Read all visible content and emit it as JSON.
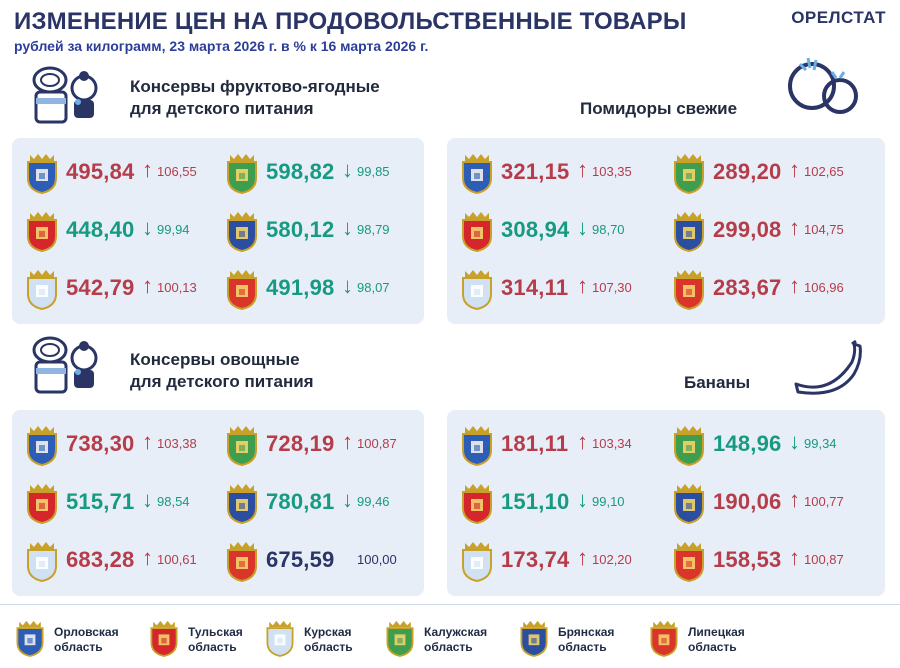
{
  "header": {
    "title": "ИЗМЕНЕНИЕ ЦЕН НА ПРОДОВОЛЬСТВЕННЫЕ ТОВАРЫ",
    "subtitle": "рублей за килограмм, 23 марта 2026 г. в % к 16 марта 2026 г.",
    "brand": "ОРЕЛСТАТ"
  },
  "colors": {
    "up": "#b63c49",
    "down": "#169a82",
    "same": "#2a3566",
    "panel": "#e7eef8"
  },
  "sections": [
    {
      "title_line1": "Консервы фруктово-ягодные",
      "title_line2": "для детского питания",
      "icon": "baby-food-jar-icon",
      "cells": [
        {
          "region": "orel",
          "price": "495,84",
          "trend": "up",
          "arrow": "↑",
          "index": "106,55"
        },
        {
          "region": "kaluga",
          "price": "598,82",
          "trend": "down",
          "arrow": "↓",
          "index": "99,85"
        },
        {
          "region": "tula",
          "price": "448,40",
          "trend": "down",
          "arrow": "↓",
          "index": "99,94"
        },
        {
          "region": "bryansk",
          "price": "580,12",
          "trend": "down",
          "arrow": "↓",
          "index": "98,79"
        },
        {
          "region": "kursk",
          "price": "542,79",
          "trend": "up",
          "arrow": "↑",
          "index": "100,13"
        },
        {
          "region": "lipetsk",
          "price": "491,98",
          "trend": "down",
          "arrow": "↓",
          "index": "98,07"
        }
      ]
    },
    {
      "title_line1": "Помидоры свежие",
      "title_line2": "",
      "icon": "tomato-icon",
      "cells": [
        {
          "region": "orel",
          "price": "321,15",
          "trend": "up",
          "arrow": "↑",
          "index": "103,35"
        },
        {
          "region": "kaluga",
          "price": "289,20",
          "trend": "up",
          "arrow": "↑",
          "index": "102,65"
        },
        {
          "region": "tula",
          "price": "308,94",
          "trend": "down",
          "arrow": "↓",
          "index": "98,70"
        },
        {
          "region": "bryansk",
          "price": "299,08",
          "trend": "up",
          "arrow": "↑",
          "index": "104,75"
        },
        {
          "region": "kursk",
          "price": "314,11",
          "trend": "up",
          "arrow": "↑",
          "index": "107,30"
        },
        {
          "region": "lipetsk",
          "price": "283,67",
          "trend": "up",
          "arrow": "↑",
          "index": "106,96"
        }
      ]
    },
    {
      "title_line1": "Консервы овощные",
      "title_line2": "для детского питания",
      "icon": "baby-food-jar-icon",
      "cells": [
        {
          "region": "orel",
          "price": "738,30",
          "trend": "up",
          "arrow": "↑",
          "index": "103,38"
        },
        {
          "region": "kaluga",
          "price": "728,19",
          "trend": "up",
          "arrow": "↑",
          "index": "100,87"
        },
        {
          "region": "tula",
          "price": "515,71",
          "trend": "down",
          "arrow": "↓",
          "index": "98,54"
        },
        {
          "region": "bryansk",
          "price": "780,81",
          "trend": "down",
          "arrow": "↓",
          "index": "99,46"
        },
        {
          "region": "kursk",
          "price": "683,28",
          "trend": "up",
          "arrow": "↑",
          "index": "100,61"
        },
        {
          "region": "lipetsk",
          "price": "675,59",
          "trend": "same",
          "arrow": "",
          "index": "100,00"
        }
      ]
    },
    {
      "title_line1": "Бананы",
      "title_line2": "",
      "icon": "banana-icon",
      "cells": [
        {
          "region": "orel",
          "price": "181,11",
          "trend": "up",
          "arrow": "↑",
          "index": "103,34"
        },
        {
          "region": "kaluga",
          "price": "148,96",
          "trend": "down",
          "arrow": "↓",
          "index": "99,34"
        },
        {
          "region": "tula",
          "price": "151,10",
          "trend": "down",
          "arrow": "↓",
          "index": "99,10"
        },
        {
          "region": "bryansk",
          "price": "190,06",
          "trend": "up",
          "arrow": "↑",
          "index": "100,77"
        },
        {
          "region": "kursk",
          "price": "173,74",
          "trend": "up",
          "arrow": "↑",
          "index": "102,20"
        },
        {
          "region": "lipetsk",
          "price": "158,53",
          "trend": "up",
          "arrow": "↑",
          "index": "100,87"
        }
      ]
    }
  ],
  "legend": [
    {
      "region": "orel",
      "line1": "Орловская",
      "line2": "область"
    },
    {
      "region": "tula",
      "line1": "Тульская",
      "line2": "область"
    },
    {
      "region": "kursk",
      "line1": "Курская",
      "line2": "область"
    },
    {
      "region": "kaluga",
      "line1": "Калужская",
      "line2": "область"
    },
    {
      "region": "bryansk",
      "line1": "Брянская",
      "line2": "область"
    },
    {
      "region": "lipetsk",
      "line1": "Липецкая",
      "line2": "область"
    }
  ]
}
